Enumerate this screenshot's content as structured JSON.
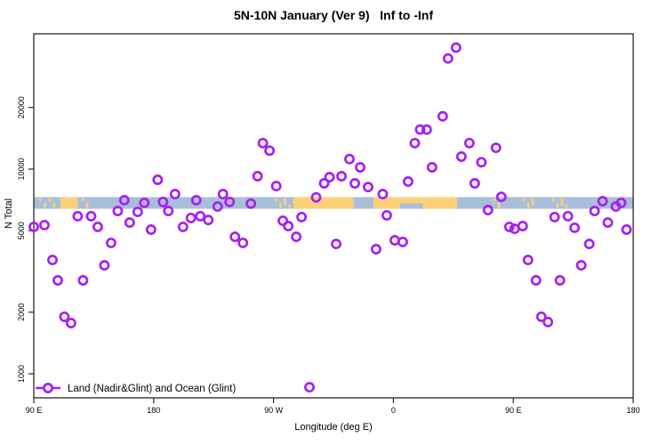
{
  "chart": {
    "title": "5N-10N January (Ver 9)   Inf to -Inf",
    "xlabel": "Longitude (deg E)",
    "ylabel": "N Total",
    "legend": "Land (Nadir&Glint) and Ocean (Glint)"
  },
  "colors": {
    "marker": "#A820F0",
    "ocean_band": "#A9BED8",
    "land_band": "#FAD17A",
    "frame": "#262626",
    "text": "#000000"
  },
  "chart_data": {
    "type": "scatter",
    "title": "5N-10N January (Ver 9)   Inf to -Inf",
    "xlabel": "Longitude (deg E)",
    "ylabel": "N Total",
    "legend_position": "bottom-left",
    "x_axis": {
      "range_deg": [
        90,
        540
      ],
      "ticks_deg": [
        90,
        180,
        270,
        360,
        450,
        540
      ],
      "tick_labels": [
        "90 E",
        "180",
        "90 W",
        "0",
        "90 E",
        "180"
      ],
      "note": "longitude increases eastward from 90E and wraps past 180/0 back to 180"
    },
    "y_axis": {
      "scale": "log",
      "ticks": [
        1000,
        2000,
        5000,
        10000,
        20000
      ],
      "range": [
        760,
        46000
      ],
      "grid": false
    },
    "reference_band": {
      "value_range": [
        6400,
        7300
      ],
      "land_segments_deg": [
        [
          94,
          100,
          "speckle"
        ],
        [
          101,
          107,
          "speckle"
        ],
        [
          110,
          123,
          "full"
        ],
        [
          126,
          131,
          "speckle"
        ],
        [
          271,
          285,
          "speckle"
        ],
        [
          285,
          330,
          "full"
        ],
        [
          345,
          365,
          "full"
        ],
        [
          365,
          382,
          "half"
        ],
        [
          382,
          408,
          "full"
        ],
        [
          435,
          441,
          "speckle"
        ],
        [
          457,
          465,
          "speckle"
        ],
        [
          479,
          492,
          "speckle"
        ]
      ]
    },
    "series": [
      {
        "name": "Land (Nadir&Glint) and Ocean (Glint)",
        "marker": "open-circle",
        "points": [
          [
            90,
            5220
          ],
          [
            98,
            5330
          ],
          [
            104,
            3600
          ],
          [
            108,
            2860
          ],
          [
            113,
            1900
          ],
          [
            118,
            1770
          ],
          [
            123,
            5890
          ],
          [
            127,
            2860
          ],
          [
            133,
            5890
          ],
          [
            138,
            5220
          ],
          [
            143,
            3390
          ],
          [
            148,
            4360
          ],
          [
            153,
            6240
          ],
          [
            158,
            7050
          ],
          [
            162,
            5480
          ],
          [
            168,
            6180
          ],
          [
            173,
            6840
          ],
          [
            178,
            5060
          ],
          [
            183,
            8870
          ],
          [
            187,
            6910
          ],
          [
            191,
            6240
          ],
          [
            196,
            7550
          ],
          [
            202,
            5220
          ],
          [
            208,
            5770
          ],
          [
            212,
            7050
          ],
          [
            215,
            5890
          ],
          [
            221,
            5640
          ],
          [
            228,
            6560
          ],
          [
            232,
            7550
          ],
          [
            237,
            6910
          ],
          [
            241,
            4670
          ],
          [
            247,
            4360
          ],
          [
            253,
            6780
          ],
          [
            258,
            9230
          ],
          [
            262,
            13400
          ],
          [
            267,
            12300
          ],
          [
            272,
            8260
          ],
          [
            277,
            5590
          ],
          [
            281,
            5270
          ],
          [
            287,
            4670
          ],
          [
            291,
            5830
          ],
          [
            297,
            860
          ],
          [
            302,
            7270
          ],
          [
            308,
            8520
          ],
          [
            312,
            9130
          ],
          [
            317,
            4310
          ],
          [
            321,
            9230
          ],
          [
            327,
            11200
          ],
          [
            331,
            8520
          ],
          [
            335,
            10200
          ],
          [
            341,
            8170
          ],
          [
            347,
            4060
          ],
          [
            352,
            7550
          ],
          [
            355,
            5950
          ],
          [
            361,
            4490
          ],
          [
            367,
            4410
          ],
          [
            371,
            8690
          ],
          [
            376,
            13400
          ],
          [
            380,
            15600
          ],
          [
            385,
            15600
          ],
          [
            389,
            10200
          ],
          [
            397,
            18100
          ],
          [
            401,
            34700
          ],
          [
            407,
            39200
          ],
          [
            411,
            11500
          ],
          [
            417,
            13400
          ],
          [
            421,
            8520
          ],
          [
            426,
            10800
          ],
          [
            431,
            6310
          ],
          [
            437,
            12700
          ],
          [
            441,
            7320
          ],
          [
            447,
            5220
          ],
          [
            451,
            5110
          ],
          [
            457,
            5270
          ],
          [
            461,
            3600
          ],
          [
            467,
            2860
          ],
          [
            471,
            1900
          ],
          [
            476,
            1790
          ],
          [
            481,
            5830
          ],
          [
            485,
            2860
          ],
          [
            491,
            5890
          ],
          [
            496,
            5170
          ],
          [
            501,
            3390
          ],
          [
            507,
            4310
          ],
          [
            511,
            6240
          ],
          [
            517,
            6970
          ],
          [
            521,
            5480
          ],
          [
            527,
            6560
          ],
          [
            531,
            6840
          ],
          [
            535,
            5060
          ]
        ]
      }
    ]
  }
}
